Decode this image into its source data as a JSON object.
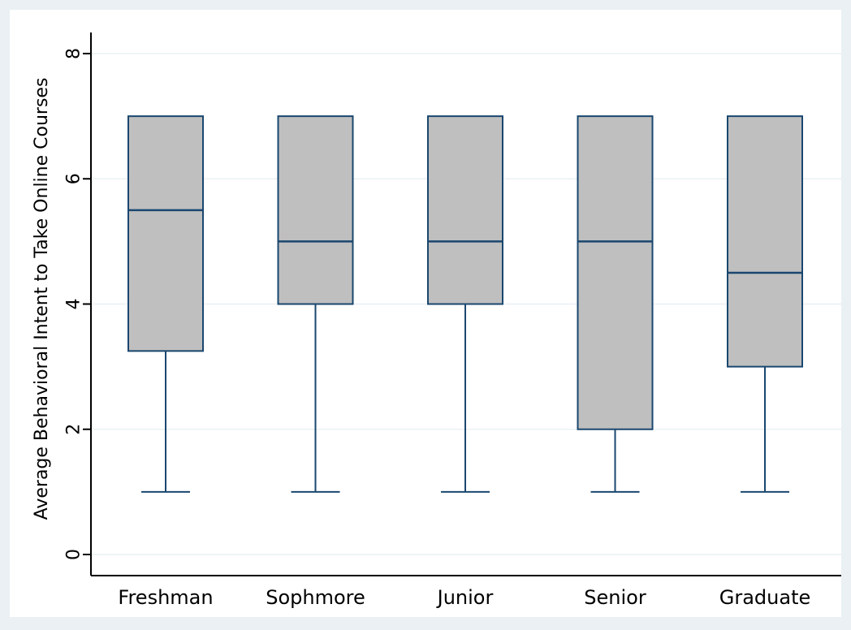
{
  "colors": {
    "outer_background": "#eaf0f3",
    "plot_background": "#ffffff",
    "box_fill": "#bfbfbf",
    "box_stroke": "#1a476f",
    "grid": "#eaf0f3",
    "axis": "#000000"
  },
  "chart_data": {
    "type": "box",
    "title": "",
    "xlabel": "",
    "ylabel": "Average Behavioral Intent to Take Online Courses",
    "ylim": [
      -0.3,
      8.3
    ],
    "yticks": [
      0,
      2,
      4,
      6,
      8
    ],
    "ytick_labels": [
      "0",
      "2",
      "4",
      "6",
      "8"
    ],
    "grid": true,
    "categories": [
      "Freshman",
      "Sophmore",
      "Junior",
      "Senior",
      "Graduate"
    ],
    "boxes": [
      {
        "category": "Freshman",
        "whisker_low": 1,
        "q1": 3.25,
        "median": 5.5,
        "q3": 7,
        "whisker_high": 7
      },
      {
        "category": "Sophmore",
        "whisker_low": 1,
        "q1": 4,
        "median": 5,
        "q3": 7,
        "whisker_high": 7
      },
      {
        "category": "Junior",
        "whisker_low": 1,
        "q1": 4,
        "median": 5,
        "q3": 7,
        "whisker_high": 7
      },
      {
        "category": "Senior",
        "whisker_low": 1,
        "q1": 2,
        "median": 5,
        "q3": 7,
        "whisker_high": 7
      },
      {
        "category": "Graduate",
        "whisker_low": 1,
        "q1": 3,
        "median": 4.5,
        "q3": 7,
        "whisker_high": 7
      }
    ]
  }
}
